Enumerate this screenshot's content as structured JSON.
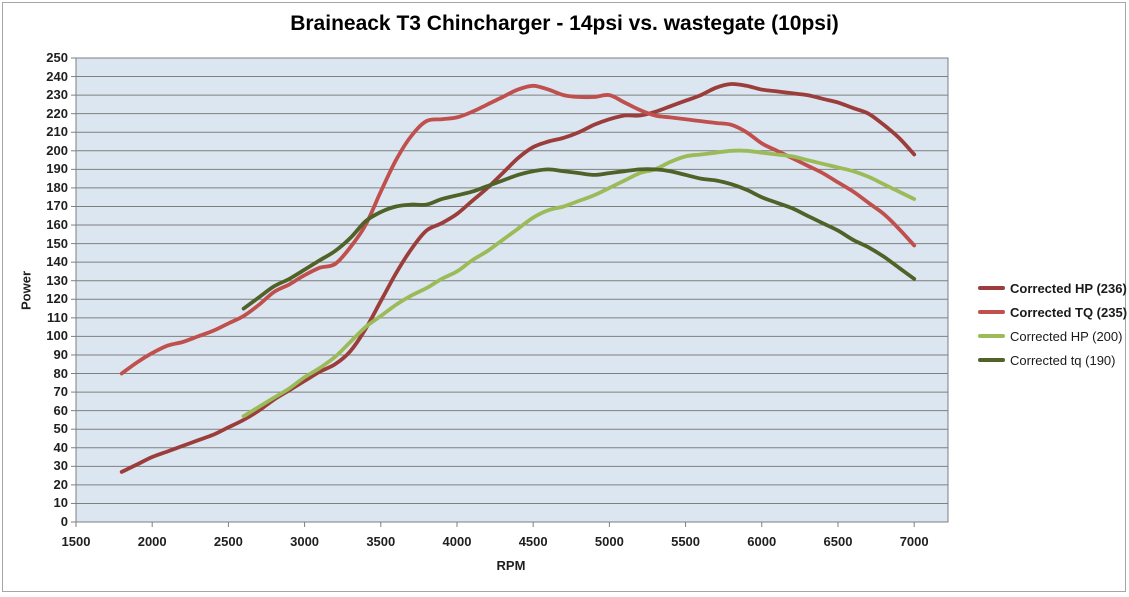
{
  "title": "Braineack T3 Chincharger - 14psi vs. wastegate (10psi)",
  "chart_data": {
    "type": "line",
    "title": "Braineack T3 Chincharger - 14psi vs. wastegate (10psi)",
    "xlabel": "RPM",
    "ylabel": "Power",
    "xlim": [
      1500,
      7000
    ],
    "ylim": [
      0,
      250
    ],
    "x_render_max": 7222,
    "grid": true,
    "legend_position": "right",
    "plot_bg": "#dce6f1",
    "grid_color": "#7f7f7f",
    "x_ticks": [
      1500,
      2000,
      2500,
      3000,
      3500,
      4000,
      4500,
      5000,
      5500,
      6000,
      6500,
      7000
    ],
    "y_ticks": [
      0,
      10,
      20,
      30,
      40,
      50,
      60,
      70,
      80,
      90,
      100,
      110,
      120,
      130,
      140,
      150,
      160,
      170,
      180,
      190,
      200,
      210,
      220,
      230,
      240,
      250
    ],
    "series": [
      {
        "name": "Corrected HP (236)",
        "color": "#9b3d3b",
        "legend_bold": true,
        "points": [
          [
            1800,
            27
          ],
          [
            1900,
            31
          ],
          [
            2000,
            35
          ],
          [
            2100,
            38
          ],
          [
            2200,
            41
          ],
          [
            2300,
            44
          ],
          [
            2400,
            47
          ],
          [
            2500,
            51
          ],
          [
            2600,
            55
          ],
          [
            2700,
            60
          ],
          [
            2800,
            66
          ],
          [
            2900,
            71
          ],
          [
            3000,
            76
          ],
          [
            3100,
            81
          ],
          [
            3200,
            85
          ],
          [
            3300,
            92
          ],
          [
            3400,
            104
          ],
          [
            3500,
            119
          ],
          [
            3600,
            134
          ],
          [
            3700,
            147
          ],
          [
            3800,
            157
          ],
          [
            3900,
            161
          ],
          [
            4000,
            166
          ],
          [
            4100,
            173
          ],
          [
            4200,
            180
          ],
          [
            4300,
            188
          ],
          [
            4400,
            196
          ],
          [
            4500,
            202
          ],
          [
            4600,
            205
          ],
          [
            4700,
            207
          ],
          [
            4800,
            210
          ],
          [
            4900,
            214
          ],
          [
            5000,
            217
          ],
          [
            5100,
            219
          ],
          [
            5200,
            219
          ],
          [
            5300,
            221
          ],
          [
            5400,
            224
          ],
          [
            5500,
            227
          ],
          [
            5600,
            230
          ],
          [
            5700,
            234
          ],
          [
            5800,
            236
          ],
          [
            5900,
            235
          ],
          [
            6000,
            233
          ],
          [
            6100,
            232
          ],
          [
            6200,
            231
          ],
          [
            6300,
            230
          ],
          [
            6400,
            228
          ],
          [
            6500,
            226
          ],
          [
            6600,
            223
          ],
          [
            6700,
            220
          ],
          [
            6800,
            214
          ],
          [
            6900,
            207
          ],
          [
            7000,
            198
          ]
        ]
      },
      {
        "name": "Corrected TQ (235)",
        "color": "#c0504d",
        "legend_bold": true,
        "points": [
          [
            1800,
            80
          ],
          [
            1900,
            86
          ],
          [
            2000,
            91
          ],
          [
            2100,
            95
          ],
          [
            2200,
            97
          ],
          [
            2300,
            100
          ],
          [
            2400,
            103
          ],
          [
            2500,
            107
          ],
          [
            2600,
            111
          ],
          [
            2700,
            117
          ],
          [
            2800,
            124
          ],
          [
            2900,
            128
          ],
          [
            3000,
            133
          ],
          [
            3100,
            137
          ],
          [
            3200,
            139
          ],
          [
            3300,
            148
          ],
          [
            3400,
            160
          ],
          [
            3500,
            178
          ],
          [
            3600,
            195
          ],
          [
            3700,
            208
          ],
          [
            3800,
            216
          ],
          [
            3900,
            217
          ],
          [
            4000,
            218
          ],
          [
            4100,
            221
          ],
          [
            4200,
            225
          ],
          [
            4300,
            229
          ],
          [
            4400,
            233
          ],
          [
            4500,
            235
          ],
          [
            4600,
            233
          ],
          [
            4700,
            230
          ],
          [
            4800,
            229
          ],
          [
            4900,
            229
          ],
          [
            5000,
            230
          ],
          [
            5100,
            226
          ],
          [
            5200,
            222
          ],
          [
            5300,
            219
          ],
          [
            5400,
            218
          ],
          [
            5500,
            217
          ],
          [
            5600,
            216
          ],
          [
            5700,
            215
          ],
          [
            5800,
            214
          ],
          [
            5900,
            210
          ],
          [
            6000,
            204
          ],
          [
            6100,
            200
          ],
          [
            6200,
            196
          ],
          [
            6300,
            192
          ],
          [
            6400,
            188
          ],
          [
            6500,
            183
          ],
          [
            6600,
            178
          ],
          [
            6700,
            172
          ],
          [
            6800,
            166
          ],
          [
            6900,
            158
          ],
          [
            7000,
            149
          ]
        ]
      },
      {
        "name": "Corrected HP (200)",
        "color": "#9bbb59",
        "legend_bold": false,
        "points": [
          [
            2600,
            57
          ],
          [
            2700,
            62
          ],
          [
            2800,
            67
          ],
          [
            2900,
            72
          ],
          [
            3000,
            78
          ],
          [
            3100,
            83
          ],
          [
            3200,
            89
          ],
          [
            3300,
            97
          ],
          [
            3400,
            105
          ],
          [
            3500,
            111
          ],
          [
            3600,
            117
          ],
          [
            3700,
            122
          ],
          [
            3800,
            126
          ],
          [
            3900,
            131
          ],
          [
            4000,
            135
          ],
          [
            4100,
            141
          ],
          [
            4200,
            146
          ],
          [
            4300,
            152
          ],
          [
            4400,
            158
          ],
          [
            4500,
            164
          ],
          [
            4600,
            168
          ],
          [
            4700,
            170
          ],
          [
            4800,
            173
          ],
          [
            4900,
            176
          ],
          [
            5000,
            180
          ],
          [
            5100,
            184
          ],
          [
            5200,
            188
          ],
          [
            5300,
            190
          ],
          [
            5400,
            194
          ],
          [
            5500,
            197
          ],
          [
            5600,
            198
          ],
          [
            5700,
            199
          ],
          [
            5800,
            200
          ],
          [
            5900,
            200
          ],
          [
            6000,
            199
          ],
          [
            6100,
            198
          ],
          [
            6200,
            197
          ],
          [
            6300,
            195
          ],
          [
            6400,
            193
          ],
          [
            6500,
            191
          ],
          [
            6600,
            189
          ],
          [
            6700,
            186
          ],
          [
            6800,
            182
          ],
          [
            6900,
            178
          ],
          [
            7000,
            174
          ]
        ]
      },
      {
        "name": "Corrected tq (190)",
        "color": "#4f6228",
        "legend_bold": false,
        "points": [
          [
            2600,
            115
          ],
          [
            2700,
            121
          ],
          [
            2800,
            127
          ],
          [
            2900,
            131
          ],
          [
            3000,
            136
          ],
          [
            3100,
            141
          ],
          [
            3200,
            146
          ],
          [
            3300,
            153
          ],
          [
            3400,
            162
          ],
          [
            3500,
            167
          ],
          [
            3600,
            170
          ],
          [
            3700,
            171
          ],
          [
            3800,
            171
          ],
          [
            3900,
            174
          ],
          [
            4000,
            176
          ],
          [
            4100,
            178
          ],
          [
            4200,
            181
          ],
          [
            4300,
            184
          ],
          [
            4400,
            187
          ],
          [
            4500,
            189
          ],
          [
            4600,
            190
          ],
          [
            4700,
            189
          ],
          [
            4800,
            188
          ],
          [
            4900,
            187
          ],
          [
            5000,
            188
          ],
          [
            5100,
            189
          ],
          [
            5200,
            190
          ],
          [
            5300,
            190
          ],
          [
            5400,
            189
          ],
          [
            5500,
            187
          ],
          [
            5600,
            185
          ],
          [
            5700,
            184
          ],
          [
            5800,
            182
          ],
          [
            5900,
            179
          ],
          [
            6000,
            175
          ],
          [
            6100,
            172
          ],
          [
            6200,
            169
          ],
          [
            6300,
            165
          ],
          [
            6400,
            161
          ],
          [
            6500,
            157
          ],
          [
            6600,
            152
          ],
          [
            6700,
            148
          ],
          [
            6800,
            143
          ],
          [
            6900,
            137
          ],
          [
            7000,
            131
          ]
        ]
      }
    ]
  }
}
